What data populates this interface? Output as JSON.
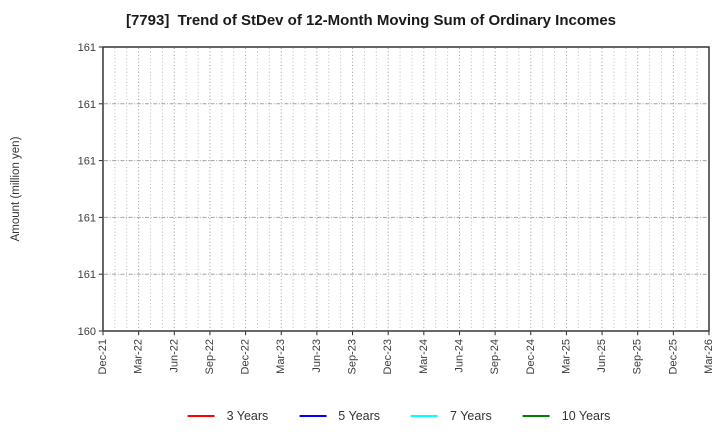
{
  "figure": {
    "title": "[7793]  Trend of StDev of 12-Month Moving Sum of Ordinary Incomes",
    "background": "#ffffff"
  },
  "axes": {
    "ylabel": "Amount (million yen)",
    "y_tick_labels_top_to_bottom": [
      "161",
      "161",
      "161",
      "161",
      "161",
      "160"
    ],
    "x_tick_labels": [
      "Dec-21",
      "Mar-22",
      "Jun-22",
      "Sep-22",
      "Dec-22",
      "Mar-23",
      "Jun-23",
      "Sep-23",
      "Dec-23",
      "Mar-24",
      "Jun-24",
      "Sep-24",
      "Dec-24",
      "Mar-25",
      "Jun-25",
      "Sep-25",
      "Dec-25",
      "Mar-26"
    ],
    "axis_color": "#262626",
    "tick_label_color": "#3c3c3c",
    "grid_minor_color": "#bcbcbc",
    "grid_major_color": "#9a9a9a",
    "grid_horizontal_color": "#a2a2a2"
  },
  "legend": {
    "items": [
      {
        "label": "3 Years",
        "color": "#ff0000"
      },
      {
        "label": "5 Years",
        "color": "#0000ff"
      },
      {
        "label": "7 Years",
        "color": "#00ffff"
      },
      {
        "label": "10 Years",
        "color": "#008000"
      }
    ]
  },
  "chart_data": {
    "type": "line",
    "title": "[7793]  Trend of StDev of 12-Month Moving Sum of Ordinary Incomes",
    "ylabel": "Amount (million yen)",
    "x_tick_labels": [
      "Dec-21",
      "Mar-22",
      "Jun-22",
      "Sep-22",
      "Dec-22",
      "Mar-23",
      "Jun-23",
      "Sep-23",
      "Dec-23",
      "Mar-24",
      "Jun-24",
      "Sep-24",
      "Dec-24",
      "Mar-25",
      "Jun-25",
      "Sep-25",
      "Dec-25",
      "Mar-26"
    ],
    "months_per_labeled_tick": 3,
    "y_tick_labels_top_to_bottom": [
      "161",
      "161",
      "161",
      "161",
      "161",
      "160"
    ],
    "ylim": [
      160,
      161
    ],
    "grid": true,
    "legend_position": "bottom",
    "series": [
      {
        "name": "3 Years",
        "color": "#ff0000",
        "values": []
      },
      {
        "name": "5 Years",
        "color": "#0000ff",
        "values": []
      },
      {
        "name": "7 Years",
        "color": "#00ffff",
        "values": []
      },
      {
        "name": "10 Years",
        "color": "#008000",
        "values": []
      }
    ]
  }
}
